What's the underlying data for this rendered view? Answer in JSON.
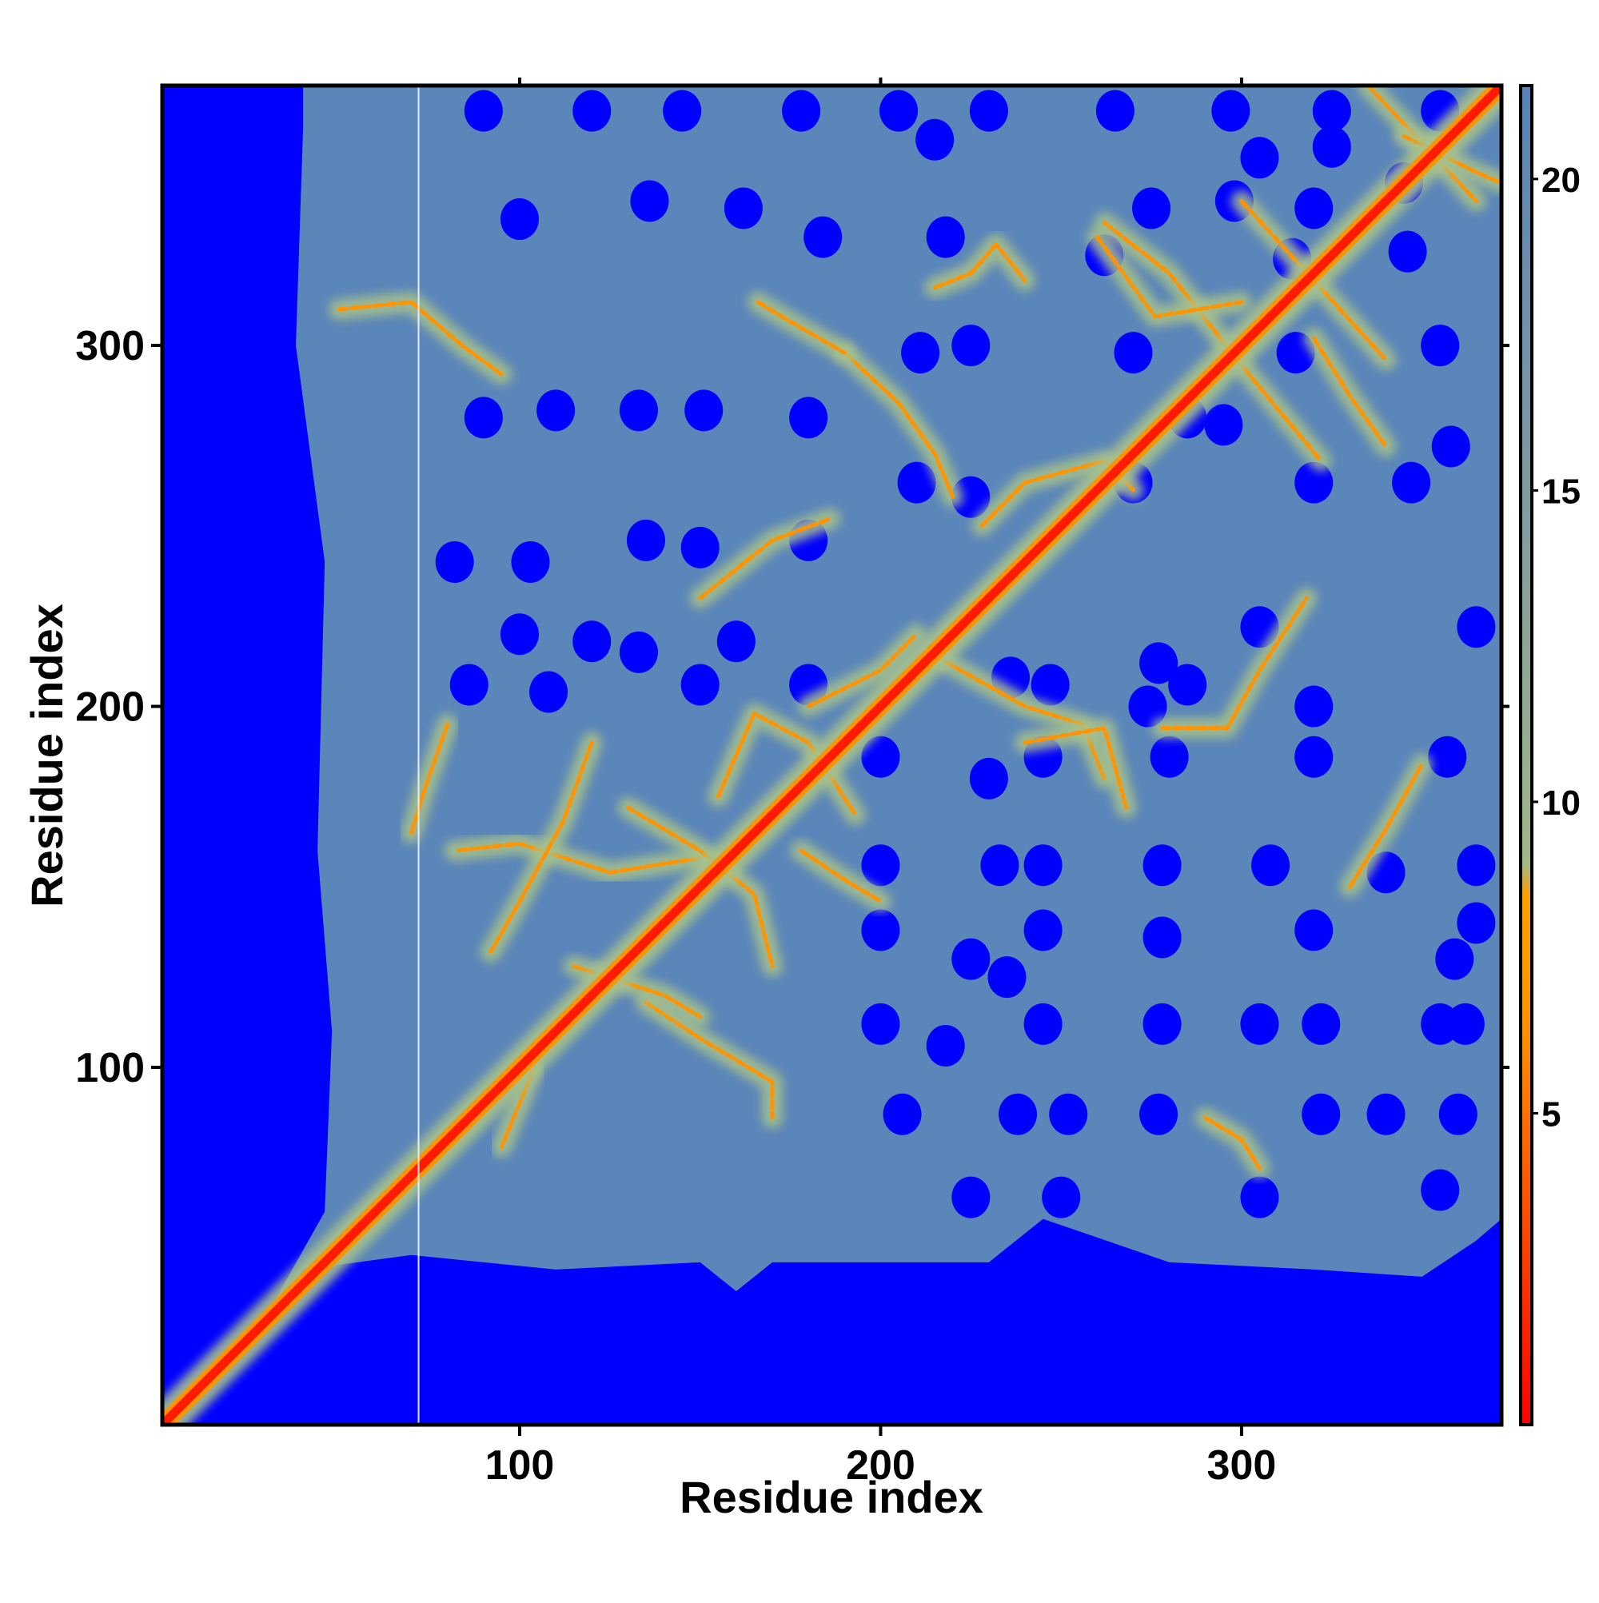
{
  "chart_data": {
    "type": "heatmap",
    "title": "",
    "xlabel": "Residue index",
    "ylabel": "Residue index",
    "n_residues": 372,
    "xlim": [
      1,
      372
    ],
    "ylim": [
      1,
      372
    ],
    "x_ticks": [
      100,
      200,
      300
    ],
    "y_ticks": [
      100,
      200,
      300
    ],
    "x_tick_labels": [
      "100",
      "200",
      "300"
    ],
    "y_tick_labels": [
      "100",
      "200",
      "300"
    ],
    "colorbar": {
      "range": [
        0,
        21.5
      ],
      "ticks": [
        5,
        10,
        15,
        20
      ],
      "tick_labels": [
        "5",
        "10",
        "15",
        "20"
      ],
      "stops": [
        {
          "value": 0,
          "color": "#ff0000"
        },
        {
          "value": 6.5,
          "color": "#ff9400"
        },
        {
          "value": 8.5,
          "color": "#ffa000"
        },
        {
          "value": 9,
          "color": "#9fb886"
        },
        {
          "value": 13,
          "color": "#8aa399"
        },
        {
          "value": 21.5,
          "color": "#5a82b8"
        }
      ]
    },
    "colors": {
      "diagonal": "#ff1a00",
      "near_contact": "#ff9400",
      "medium": "#a8c28a",
      "background": "#5b86b9",
      "far": "#0000fe"
    },
    "grid": false,
    "legend": "colorbar-right"
  }
}
